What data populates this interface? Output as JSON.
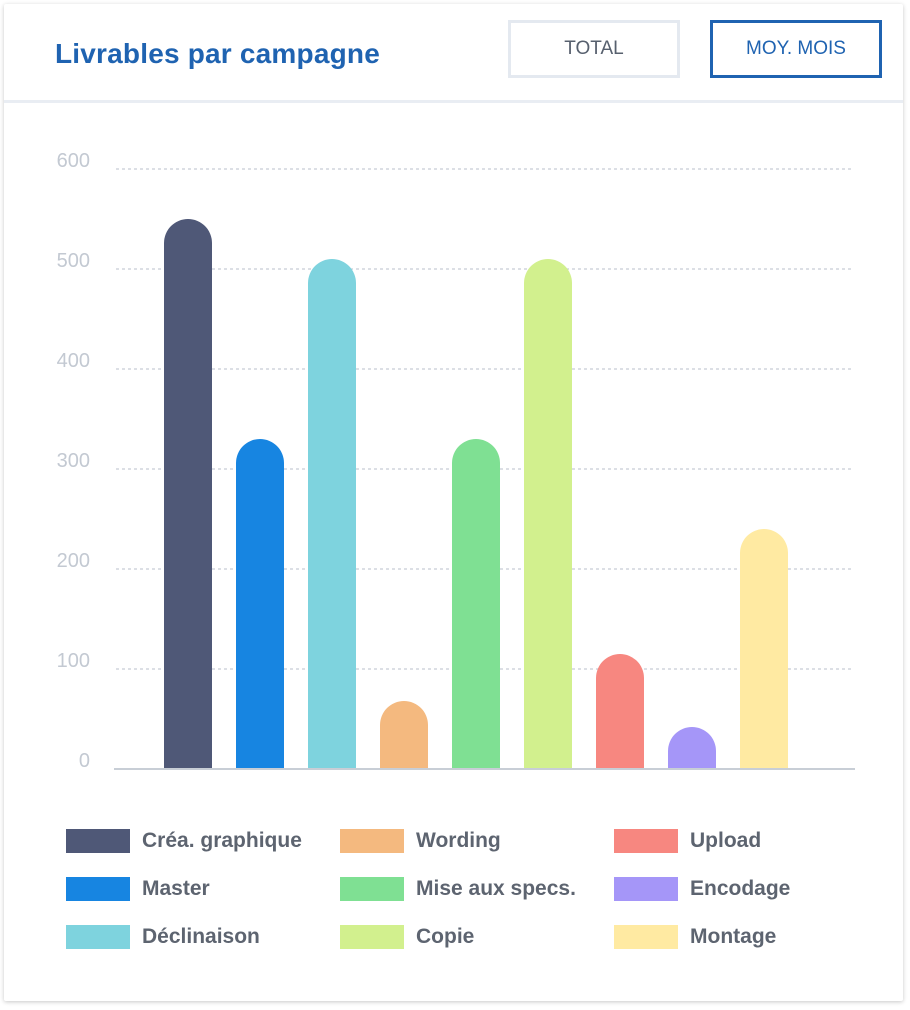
{
  "header": {
    "title": "Livrables par campagne",
    "buttons": [
      {
        "label": "TOTAL",
        "active": false
      },
      {
        "label": "MOY. MOIS",
        "active": true
      }
    ]
  },
  "colors": {
    "accent": "#1f63b1",
    "grid": "#c6ccd5",
    "tick_label": "#c3c9d2",
    "baseline": "#c8ced6"
  },
  "chart_data": {
    "type": "bar",
    "categories": [
      "Créa. graphique",
      "Master",
      "Déclinaison",
      "Wording",
      "Mise aux specs.",
      "Copie",
      "Upload",
      "Encodage",
      "Montage"
    ],
    "values": [
      550,
      330,
      510,
      68,
      330,
      510,
      115,
      42,
      240
    ],
    "colors": [
      "#4f5877",
      "#1785e1",
      "#7ed3de",
      "#f4b97f",
      "#7fe093",
      "#d2f08e",
      "#f78780",
      "#a596f8",
      "#ffeaa2"
    ],
    "ylim": [
      0,
      600
    ],
    "yticks": [
      "0",
      "100",
      "200",
      "300",
      "400",
      "500",
      "600"
    ],
    "grid": true,
    "legend_position": "bottom",
    "title": "",
    "xlabel": "",
    "ylabel": ""
  }
}
